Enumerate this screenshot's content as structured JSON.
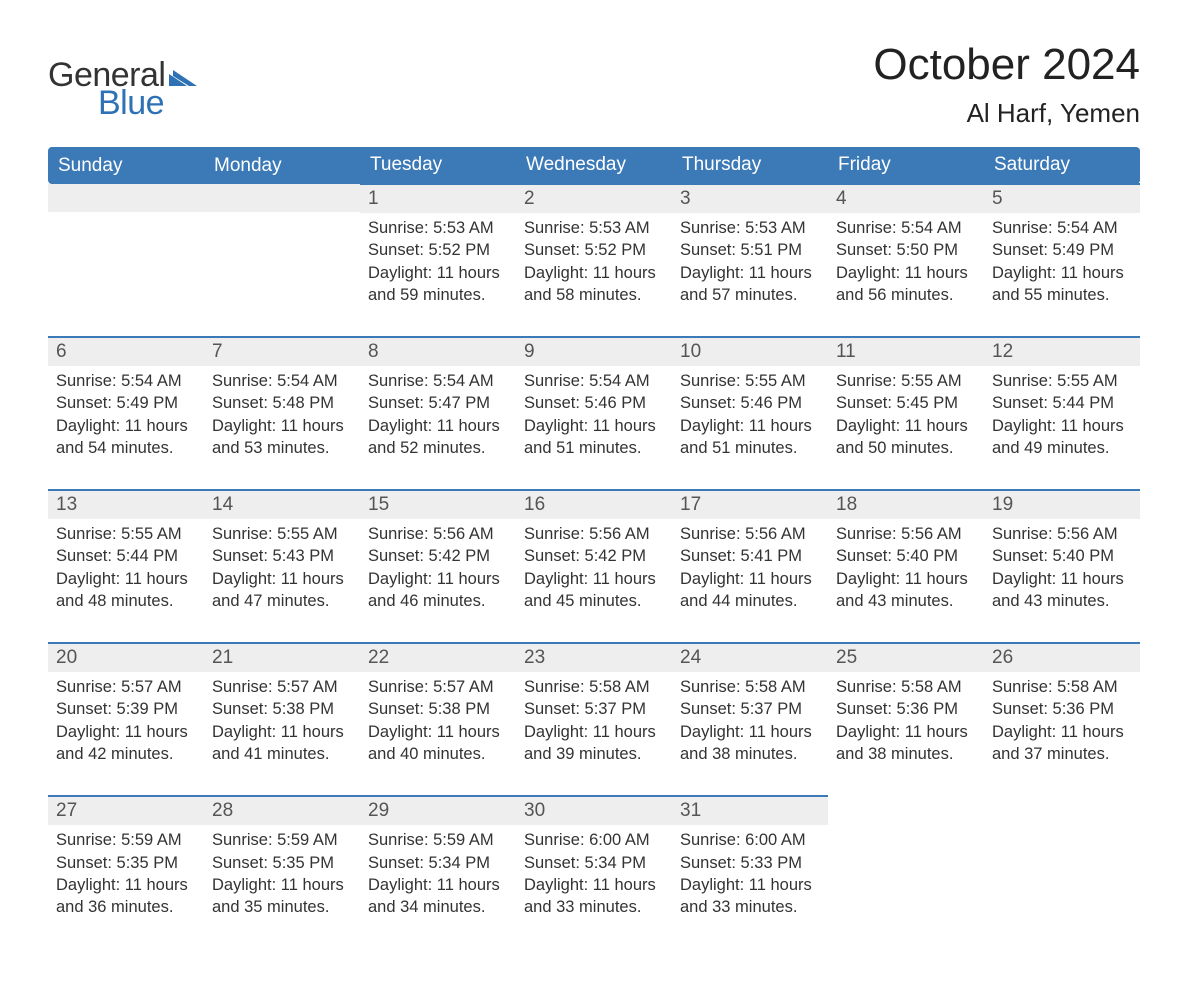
{
  "logo": {
    "word1": "General",
    "word2": "Blue",
    "flag_color": "#2e72b5"
  },
  "title": "October 2024",
  "location": "Al Harf, Yemen",
  "colors": {
    "header_bg": "#3b79b7",
    "header_text": "#ffffff",
    "cell_border": "#3b79b7",
    "daynum_bg": "#eeeeee",
    "text": "#333333",
    "logo_dark": "#333333",
    "logo_blue": "#2e72b5"
  },
  "weekdays": [
    "Sunday",
    "Monday",
    "Tuesday",
    "Wednesday",
    "Thursday",
    "Friday",
    "Saturday"
  ],
  "weeks": [
    [
      null,
      null,
      {
        "n": "1",
        "sr": "Sunrise: 5:53 AM",
        "ss": "Sunset: 5:52 PM",
        "d1": "Daylight: 11 hours",
        "d2": "and 59 minutes."
      },
      {
        "n": "2",
        "sr": "Sunrise: 5:53 AM",
        "ss": "Sunset: 5:52 PM",
        "d1": "Daylight: 11 hours",
        "d2": "and 58 minutes."
      },
      {
        "n": "3",
        "sr": "Sunrise: 5:53 AM",
        "ss": "Sunset: 5:51 PM",
        "d1": "Daylight: 11 hours",
        "d2": "and 57 minutes."
      },
      {
        "n": "4",
        "sr": "Sunrise: 5:54 AM",
        "ss": "Sunset: 5:50 PM",
        "d1": "Daylight: 11 hours",
        "d2": "and 56 minutes."
      },
      {
        "n": "5",
        "sr": "Sunrise: 5:54 AM",
        "ss": "Sunset: 5:49 PM",
        "d1": "Daylight: 11 hours",
        "d2": "and 55 minutes."
      }
    ],
    [
      {
        "n": "6",
        "sr": "Sunrise: 5:54 AM",
        "ss": "Sunset: 5:49 PM",
        "d1": "Daylight: 11 hours",
        "d2": "and 54 minutes."
      },
      {
        "n": "7",
        "sr": "Sunrise: 5:54 AM",
        "ss": "Sunset: 5:48 PM",
        "d1": "Daylight: 11 hours",
        "d2": "and 53 minutes."
      },
      {
        "n": "8",
        "sr": "Sunrise: 5:54 AM",
        "ss": "Sunset: 5:47 PM",
        "d1": "Daylight: 11 hours",
        "d2": "and 52 minutes."
      },
      {
        "n": "9",
        "sr": "Sunrise: 5:54 AM",
        "ss": "Sunset: 5:46 PM",
        "d1": "Daylight: 11 hours",
        "d2": "and 51 minutes."
      },
      {
        "n": "10",
        "sr": "Sunrise: 5:55 AM",
        "ss": "Sunset: 5:46 PM",
        "d1": "Daylight: 11 hours",
        "d2": "and 51 minutes."
      },
      {
        "n": "11",
        "sr": "Sunrise: 5:55 AM",
        "ss": "Sunset: 5:45 PM",
        "d1": "Daylight: 11 hours",
        "d2": "and 50 minutes."
      },
      {
        "n": "12",
        "sr": "Sunrise: 5:55 AM",
        "ss": "Sunset: 5:44 PM",
        "d1": "Daylight: 11 hours",
        "d2": "and 49 minutes."
      }
    ],
    [
      {
        "n": "13",
        "sr": "Sunrise: 5:55 AM",
        "ss": "Sunset: 5:44 PM",
        "d1": "Daylight: 11 hours",
        "d2": "and 48 minutes."
      },
      {
        "n": "14",
        "sr": "Sunrise: 5:55 AM",
        "ss": "Sunset: 5:43 PM",
        "d1": "Daylight: 11 hours",
        "d2": "and 47 minutes."
      },
      {
        "n": "15",
        "sr": "Sunrise: 5:56 AM",
        "ss": "Sunset: 5:42 PM",
        "d1": "Daylight: 11 hours",
        "d2": "and 46 minutes."
      },
      {
        "n": "16",
        "sr": "Sunrise: 5:56 AM",
        "ss": "Sunset: 5:42 PM",
        "d1": "Daylight: 11 hours",
        "d2": "and 45 minutes."
      },
      {
        "n": "17",
        "sr": "Sunrise: 5:56 AM",
        "ss": "Sunset: 5:41 PM",
        "d1": "Daylight: 11 hours",
        "d2": "and 44 minutes."
      },
      {
        "n": "18",
        "sr": "Sunrise: 5:56 AM",
        "ss": "Sunset: 5:40 PM",
        "d1": "Daylight: 11 hours",
        "d2": "and 43 minutes."
      },
      {
        "n": "19",
        "sr": "Sunrise: 5:56 AM",
        "ss": "Sunset: 5:40 PM",
        "d1": "Daylight: 11 hours",
        "d2": "and 43 minutes."
      }
    ],
    [
      {
        "n": "20",
        "sr": "Sunrise: 5:57 AM",
        "ss": "Sunset: 5:39 PM",
        "d1": "Daylight: 11 hours",
        "d2": "and 42 minutes."
      },
      {
        "n": "21",
        "sr": "Sunrise: 5:57 AM",
        "ss": "Sunset: 5:38 PM",
        "d1": "Daylight: 11 hours",
        "d2": "and 41 minutes."
      },
      {
        "n": "22",
        "sr": "Sunrise: 5:57 AM",
        "ss": "Sunset: 5:38 PM",
        "d1": "Daylight: 11 hours",
        "d2": "and 40 minutes."
      },
      {
        "n": "23",
        "sr": "Sunrise: 5:58 AM",
        "ss": "Sunset: 5:37 PM",
        "d1": "Daylight: 11 hours",
        "d2": "and 39 minutes."
      },
      {
        "n": "24",
        "sr": "Sunrise: 5:58 AM",
        "ss": "Sunset: 5:37 PM",
        "d1": "Daylight: 11 hours",
        "d2": "and 38 minutes."
      },
      {
        "n": "25",
        "sr": "Sunrise: 5:58 AM",
        "ss": "Sunset: 5:36 PM",
        "d1": "Daylight: 11 hours",
        "d2": "and 38 minutes."
      },
      {
        "n": "26",
        "sr": "Sunrise: 5:58 AM",
        "ss": "Sunset: 5:36 PM",
        "d1": "Daylight: 11 hours",
        "d2": "and 37 minutes."
      }
    ],
    [
      {
        "n": "27",
        "sr": "Sunrise: 5:59 AM",
        "ss": "Sunset: 5:35 PM",
        "d1": "Daylight: 11 hours",
        "d2": "and 36 minutes."
      },
      {
        "n": "28",
        "sr": "Sunrise: 5:59 AM",
        "ss": "Sunset: 5:35 PM",
        "d1": "Daylight: 11 hours",
        "d2": "and 35 minutes."
      },
      {
        "n": "29",
        "sr": "Sunrise: 5:59 AM",
        "ss": "Sunset: 5:34 PM",
        "d1": "Daylight: 11 hours",
        "d2": "and 34 minutes."
      },
      {
        "n": "30",
        "sr": "Sunrise: 6:00 AM",
        "ss": "Sunset: 5:34 PM",
        "d1": "Daylight: 11 hours",
        "d2": "and 33 minutes."
      },
      {
        "n": "31",
        "sr": "Sunrise: 6:00 AM",
        "ss": "Sunset: 5:33 PM",
        "d1": "Daylight: 11 hours",
        "d2": "and 33 minutes."
      },
      null,
      null
    ]
  ]
}
